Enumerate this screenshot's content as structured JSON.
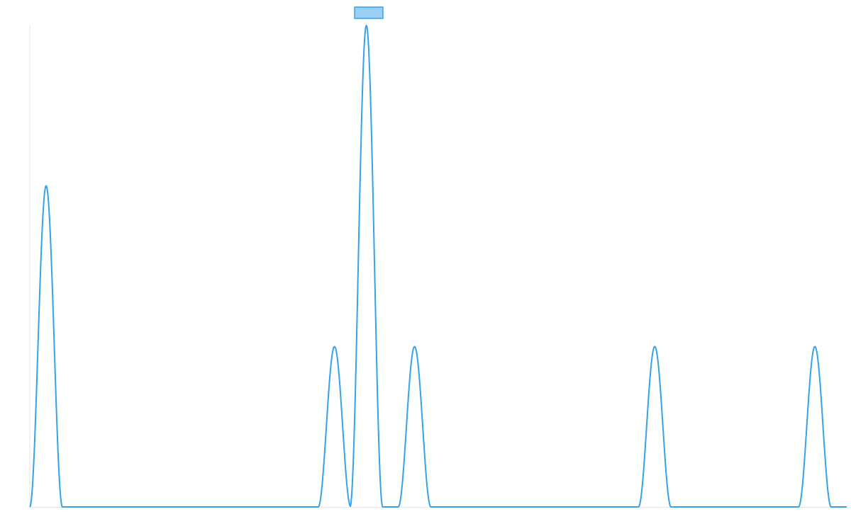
{
  "colors": {
    "series_line": "#36A2EB",
    "legend_fill": "#9AD0F5",
    "axis_line": "#E6E6E6",
    "background": "#FFFFFF"
  },
  "legend": {
    "label": "",
    "placement": "top-center"
  },
  "chart_data": {
    "type": "line",
    "title": "",
    "xlabel": "",
    "ylabel": "",
    "xlim": [
      0,
      1
    ],
    "ylim": [
      0,
      1
    ],
    "grid": false,
    "series": [
      {
        "peaks": [
          {
            "center": 0.02,
            "halfwidth": 0.02,
            "value": 0.667
          },
          {
            "center": 0.373,
            "halfwidth": 0.02,
            "value": 0.333
          },
          {
            "center": 0.412,
            "halfwidth": 0.02,
            "value": 1.0
          },
          {
            "center": 0.471,
            "halfwidth": 0.02,
            "value": 0.333
          },
          {
            "center": 0.765,
            "halfwidth": 0.02,
            "value": 0.333
          },
          {
            "center": 0.961,
            "halfwidth": 0.02,
            "value": 0.333
          }
        ]
      }
    ]
  }
}
